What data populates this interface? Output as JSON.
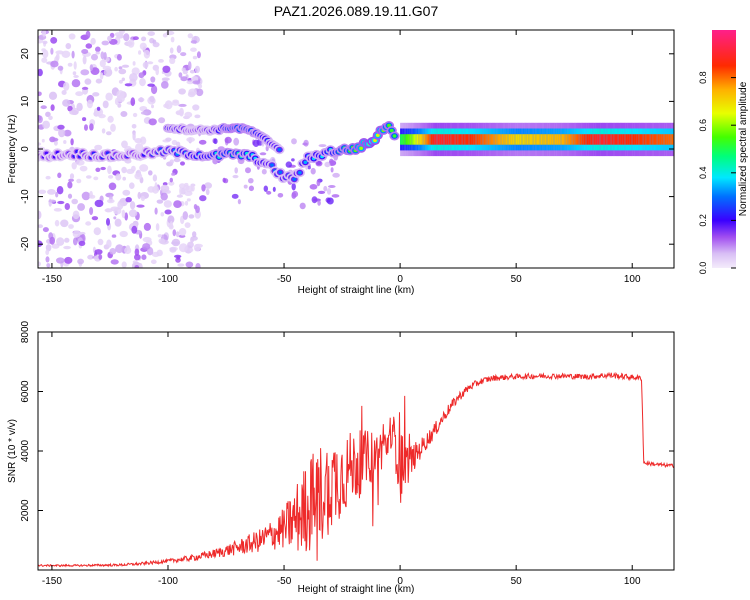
{
  "title": "PAZ1.2026.089.19.11.G07",
  "colors": {
    "snr_line": "#ee2a2a",
    "frame": "#000000"
  },
  "chart_data": [
    {
      "type": "heatmap",
      "name": "spectrogram",
      "xlabel": "Height of straight line (km)",
      "ylabel": "Frequency (Hz)",
      "xlim": [
        -156,
        118
      ],
      "ylim": [
        -25,
        25
      ],
      "xticks": [
        -150,
        -100,
        -50,
        0,
        50,
        100
      ],
      "yticks": [
        -20,
        -10,
        0,
        10,
        20
      ],
      "grid": false,
      "colorbar": {
        "label": "Normalized spectral amplitude",
        "range": [
          0,
          1
        ],
        "ticks": [
          0.0,
          0.2,
          0.4,
          0.6,
          0.8
        ],
        "tick_labels": [
          "0.0",
          "0.2",
          "0.4",
          "0.6",
          "0.8"
        ],
        "stops": [
          {
            "v": 0.0,
            "c": "#f4ecfb"
          },
          {
            "v": 0.06,
            "c": "#d9bff5"
          },
          {
            "v": 0.13,
            "c": "#a14ef0"
          },
          {
            "v": 0.2,
            "c": "#3a00ff"
          },
          {
            "v": 0.3,
            "c": "#0070ff"
          },
          {
            "v": 0.38,
            "c": "#00e8ff"
          },
          {
            "v": 0.47,
            "c": "#00ff7a"
          },
          {
            "v": 0.55,
            "c": "#44ff00"
          },
          {
            "v": 0.65,
            "c": "#e8ff00"
          },
          {
            "v": 0.75,
            "c": "#ffb000"
          },
          {
            "v": 0.85,
            "c": "#ff2a00"
          },
          {
            "v": 1.0,
            "c": "#ff1f8a"
          }
        ]
      },
      "ridge": [
        {
          "x": -156,
          "f": -1.5,
          "a": 0.18
        },
        {
          "x": -140,
          "f": -1.0,
          "a": 0.22
        },
        {
          "x": -125,
          "f": -1.5,
          "a": 0.24
        },
        {
          "x": -110,
          "f": -1.0,
          "a": 0.22
        },
        {
          "x": -100,
          "f": -0.5,
          "a": 0.3
        },
        {
          "x": -90,
          "f": -1.0,
          "a": 0.35
        },
        {
          "x": -80,
          "f": -1.5,
          "a": 0.4
        },
        {
          "x": -72,
          "f": -1.0,
          "a": 0.45
        },
        {
          "x": -65,
          "f": -1.5,
          "a": 0.4
        },
        {
          "x": -60,
          "f": -2.5,
          "a": 0.35
        },
        {
          "x": -55,
          "f": -4.0,
          "a": 0.3
        },
        {
          "x": -50,
          "f": -6.0,
          "a": 0.3
        },
        {
          "x": -45,
          "f": -6.0,
          "a": 0.3
        },
        {
          "x": -40,
          "f": -2.0,
          "a": 0.35
        },
        {
          "x": -30,
          "f": -0.5,
          "a": 0.4
        },
        {
          "x": -20,
          "f": 0.0,
          "a": 0.55
        },
        {
          "x": -12,
          "f": 1.5,
          "a": 0.7
        },
        {
          "x": -6,
          "f": 5.0,
          "a": 0.55
        },
        {
          "x": 0,
          "f": 2.0,
          "a": 0.5
        },
        {
          "x": 5,
          "f": 2.0,
          "a": 0.6
        },
        {
          "x": 15,
          "f": 2.0,
          "a": 0.9
        },
        {
          "x": 30,
          "f": 2.0,
          "a": 0.85
        },
        {
          "x": 50,
          "f": 2.0,
          "a": 0.7
        },
        {
          "x": 70,
          "f": 2.0,
          "a": 0.75
        },
        {
          "x": 85,
          "f": 2.0,
          "a": 0.9
        },
        {
          "x": 100,
          "f": 2.0,
          "a": 0.85
        },
        {
          "x": 118,
          "f": 2.0,
          "a": 0.8
        }
      ],
      "upper_ridge": [
        {
          "x": -100,
          "f": 4.5,
          "a": 0.35
        },
        {
          "x": -90,
          "f": 4.0,
          "a": 0.25
        },
        {
          "x": -80,
          "f": 4.0,
          "a": 0.3
        },
        {
          "x": -72,
          "f": 4.5,
          "a": 0.5
        },
        {
          "x": -65,
          "f": 4.0,
          "a": 0.45
        },
        {
          "x": -58,
          "f": 2.0,
          "a": 0.35
        },
        {
          "x": -52,
          "f": 0.0,
          "a": 0.3
        }
      ]
    },
    {
      "type": "line",
      "name": "snr",
      "xlabel": "Height of straight line (km)",
      "ylabel": "SNR (10 * v/v)",
      "xlim": [
        -156,
        118
      ],
      "ylim": [
        0,
        8000
      ],
      "xticks": [
        -150,
        -100,
        -50,
        0,
        50,
        100
      ],
      "yticks": [
        2000,
        4000,
        6000,
        8000
      ],
      "grid": false,
      "series": [
        {
          "name": "SNR",
          "x": [
            -156,
            -140,
            -120,
            -110,
            -100,
            -90,
            -80,
            -70,
            -60,
            -50,
            -45,
            -40,
            -35,
            -30,
            -25,
            -20,
            -15,
            -10,
            -6,
            -3,
            0,
            2,
            5,
            10,
            15,
            20,
            25,
            30,
            35,
            40,
            50,
            60,
            70,
            80,
            90,
            100,
            104,
            105,
            110,
            118
          ],
          "y": [
            150,
            150,
            170,
            220,
            300,
            400,
            550,
            750,
            1000,
            1400,
            1700,
            2100,
            2500,
            2900,
            3200,
            3500,
            3700,
            3900,
            4200,
            4500,
            3900,
            3500,
            3700,
            4200,
            4700,
            5300,
            5800,
            6150,
            6350,
            6450,
            6500,
            6520,
            6520,
            6500,
            6550,
            6480,
            6450,
            3600,
            3550,
            3500
          ],
          "noise": [
            30,
            30,
            40,
            50,
            60,
            100,
            150,
            250,
            400,
            700,
            1200,
            1600,
            1800,
            1600,
            1400,
            1200,
            1000,
            800,
            600,
            700,
            1500,
            900,
            500,
            300,
            250,
            200,
            160,
            130,
            110,
            100,
            90,
            90,
            90,
            90,
            100,
            90,
            80,
            60,
            60,
            60
          ]
        }
      ]
    }
  ]
}
